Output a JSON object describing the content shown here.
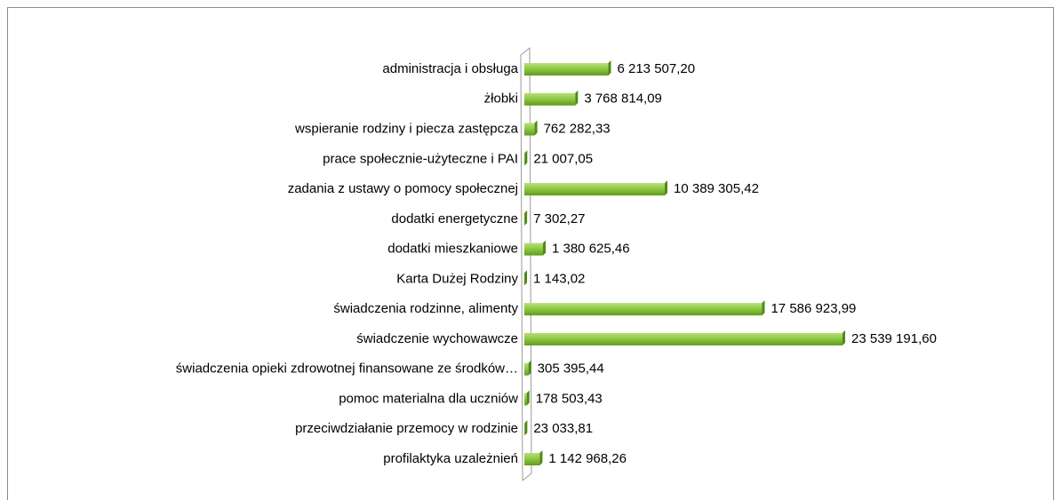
{
  "chart_data": {
    "type": "bar",
    "orientation": "horizontal",
    "color": "#8cc63f",
    "categories": [
      "administracja i obsługa",
      "żłobki",
      "wspieranie rodziny i piecza zastępcza",
      "prace społecznie-użyteczne i PAI",
      "zadania z ustawy o pomocy społecznej",
      "dodatki energetyczne",
      "dodatki mieszkaniowe",
      "Karta Dużej Rodziny",
      "świadczenia rodzinne, alimenty",
      "świadczenie wychowawcze",
      "świadczenia opieki zdrowotnej finansowane ze środków…",
      "pomoc materialna dla uczniów",
      "przeciwdziałanie przemocy w rodzinie",
      "profilaktyka uzależnień"
    ],
    "values": [
      6213507.2,
      3768814.09,
      762282.33,
      21007.05,
      10389305.42,
      7302.27,
      1380625.46,
      1143.02,
      17586923.99,
      23539191.6,
      305395.44,
      178503.43,
      23033.81,
      1142968.26
    ],
    "value_labels": [
      "6 213 507,20",
      "3 768 814,09",
      "762 282,33",
      "21 007,05",
      "10 389 305,42",
      "7 302,27",
      "1 380 625,46",
      "1 143,02",
      "17 586 923,99",
      "23 539 191,60",
      "305 395,44",
      "178 503,43",
      "23 033,81",
      "1 142 968,26"
    ]
  }
}
